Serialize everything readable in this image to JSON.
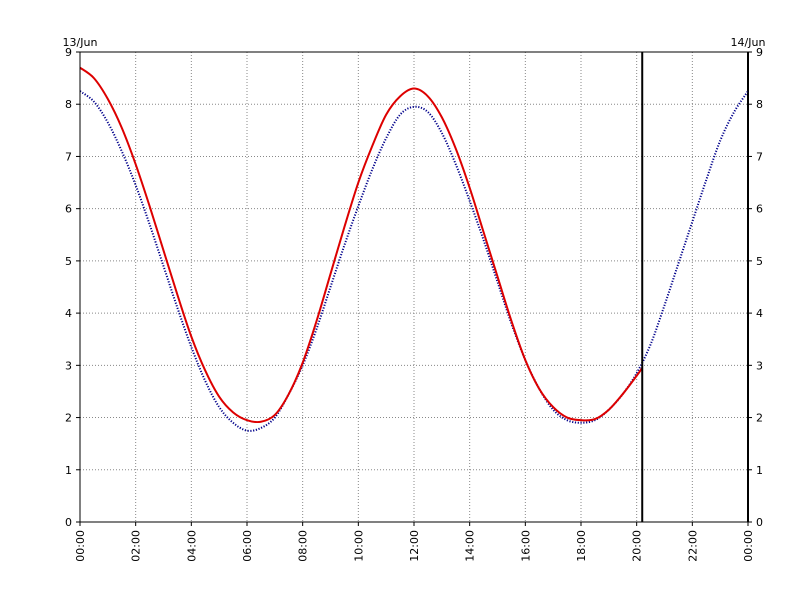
{
  "chart_data": {
    "type": "line",
    "title": "",
    "xlabel": "",
    "ylabel": "",
    "date_labels": {
      "start": "13/Jun",
      "end": "14/Jun"
    },
    "x_range_hours": [
      0,
      24
    ],
    "ylim": [
      0,
      9
    ],
    "y_ticks": [
      "0",
      "1",
      "2",
      "3",
      "4",
      "5",
      "6",
      "7",
      "8",
      "9"
    ],
    "x_ticks": [
      "00:00",
      "02:00",
      "04:00",
      "06:00",
      "08:00",
      "10:00",
      "12:00",
      "14:00",
      "16:00",
      "18:00",
      "20:00",
      "22:00",
      "00:00"
    ],
    "grid": true,
    "now_marker_hour": 20.2,
    "series": [
      {
        "color": "#dd0000",
        "style": "solid",
        "x": [
          0,
          0.5,
          1,
          1.5,
          2,
          2.5,
          3,
          3.5,
          4,
          4.5,
          5,
          5.5,
          6,
          6.5,
          7,
          7.5,
          8,
          8.5,
          9,
          9.5,
          10,
          10.5,
          11,
          11.5,
          12,
          12.5,
          13,
          13.5,
          14,
          14.5,
          15,
          15.5,
          16,
          16.5,
          17,
          17.5,
          18,
          18.5,
          19,
          19.5,
          20,
          20.2
        ],
        "y": [
          8.7,
          8.5,
          8.1,
          7.55,
          6.85,
          6.05,
          5.2,
          4.35,
          3.55,
          2.9,
          2.4,
          2.1,
          1.95,
          1.92,
          2.05,
          2.45,
          3.05,
          3.85,
          4.75,
          5.65,
          6.5,
          7.2,
          7.8,
          8.15,
          8.3,
          8.15,
          7.75,
          7.15,
          6.4,
          5.55,
          4.7,
          3.85,
          3.1,
          2.55,
          2.2,
          2.0,
          1.95,
          1.97,
          2.15,
          2.45,
          2.8,
          2.95
        ]
      },
      {
        "color": "#00008b",
        "style": "dotted",
        "x": [
          0,
          0.5,
          1,
          1.5,
          2,
          2.5,
          3,
          3.5,
          4,
          4.5,
          5,
          5.5,
          6,
          6.5,
          7,
          7.5,
          8,
          8.5,
          9,
          9.5,
          10,
          10.5,
          11,
          11.5,
          12,
          12.5,
          13,
          13.5,
          14,
          14.5,
          15,
          15.5,
          16,
          16.5,
          17,
          17.5,
          18,
          18.5,
          19,
          19.5,
          20,
          20.5,
          21,
          21.5,
          22,
          22.5,
          23,
          23.5,
          24
        ],
        "y": [
          8.25,
          8.05,
          7.65,
          7.1,
          6.45,
          5.7,
          4.9,
          4.1,
          3.35,
          2.7,
          2.2,
          1.9,
          1.75,
          1.8,
          2.0,
          2.45,
          3.0,
          3.7,
          4.5,
          5.3,
          6.05,
          6.75,
          7.35,
          7.8,
          7.95,
          7.85,
          7.45,
          6.85,
          6.15,
          5.4,
          4.6,
          3.8,
          3.1,
          2.55,
          2.15,
          1.95,
          1.9,
          1.95,
          2.15,
          2.45,
          2.85,
          3.4,
          4.15,
          4.95,
          5.75,
          6.55,
          7.3,
          7.85,
          8.25
        ]
      }
    ]
  }
}
